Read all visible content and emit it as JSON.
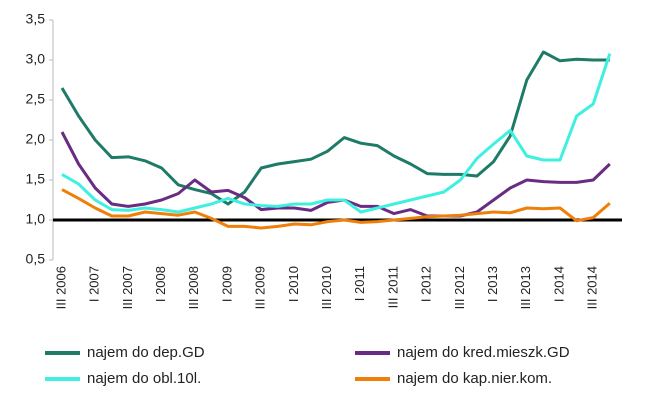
{
  "chart_data": {
    "type": "line",
    "categories": [
      "III 2006",
      null,
      "I 2007",
      null,
      "III 2007",
      null,
      "I 2008",
      null,
      "III 2008",
      null,
      "I 2009",
      null,
      "III 2009",
      null,
      "I 2010",
      null,
      "III 2010",
      null,
      "I 2011",
      null,
      "III 2011",
      null,
      "I 2012",
      null,
      "III 2012",
      null,
      "I 2013",
      null,
      "III 2013",
      null,
      "I 2014",
      null,
      "III 2014",
      null
    ],
    "series": [
      {
        "name": "najem do dep.GD",
        "color": "#1e7b68",
        "values": [
          2.65,
          2.3,
          2.0,
          1.78,
          1.79,
          1.74,
          1.65,
          1.44,
          1.38,
          1.33,
          1.2,
          1.35,
          1.65,
          1.7,
          1.73,
          1.76,
          1.86,
          2.03,
          1.96,
          1.93,
          1.8,
          1.7,
          1.58,
          1.57,
          1.57,
          1.55,
          1.73,
          2.05,
          2.75,
          3.1,
          2.99,
          3.01,
          3.0,
          3.0
        ]
      },
      {
        "name": "najem do kred.mieszk.GD",
        "color": "#6a2c82",
        "values": [
          2.1,
          1.7,
          1.4,
          1.2,
          1.17,
          1.2,
          1.25,
          1.33,
          1.5,
          1.35,
          1.37,
          1.28,
          1.13,
          1.15,
          1.15,
          1.12,
          1.22,
          1.25,
          1.17,
          1.17,
          1.08,
          1.13,
          1.05,
          1.05,
          1.05,
          1.1,
          1.25,
          1.4,
          1.5,
          1.48,
          1.47,
          1.47,
          1.5,
          1.7
        ]
      },
      {
        "name": "najem do obl.10l.",
        "color": "#3ff0e0",
        "values": [
          1.57,
          1.45,
          1.25,
          1.13,
          1.12,
          1.15,
          1.13,
          1.1,
          1.15,
          1.2,
          1.27,
          1.2,
          1.18,
          1.17,
          1.2,
          1.2,
          1.25,
          1.25,
          1.1,
          1.15,
          1.2,
          1.25,
          1.3,
          1.35,
          1.5,
          1.77,
          1.95,
          2.12,
          1.8,
          1.75,
          1.75,
          2.3,
          2.45,
          3.08
        ]
      },
      {
        "name": "najem do kap.nier.kom.",
        "color": "#f07f09",
        "values": [
          1.38,
          1.27,
          1.15,
          1.05,
          1.05,
          1.1,
          1.08,
          1.06,
          1.1,
          1.02,
          0.92,
          0.92,
          0.9,
          0.92,
          0.95,
          0.94,
          0.98,
          1.0,
          0.97,
          0.98,
          1.0,
          1.02,
          1.04,
          1.05,
          1.06,
          1.08,
          1.1,
          1.09,
          1.15,
          1.14,
          1.15,
          0.99,
          1.03,
          1.21
        ]
      }
    ],
    "ylim": [
      0.5,
      3.5
    ],
    "yticks": [
      {
        "value": 0.5,
        "label": "0,5"
      },
      {
        "value": 1,
        "label": "1,0"
      },
      {
        "value": 1.5,
        "label": "1,5"
      },
      {
        "value": 2,
        "label": "2,0"
      },
      {
        "value": 2.5,
        "label": "2,5"
      },
      {
        "value": 3,
        "label": "3,0"
      },
      {
        "value": 3.5,
        "label": "3,5"
      }
    ],
    "reference_line": 1,
    "grid": false
  }
}
